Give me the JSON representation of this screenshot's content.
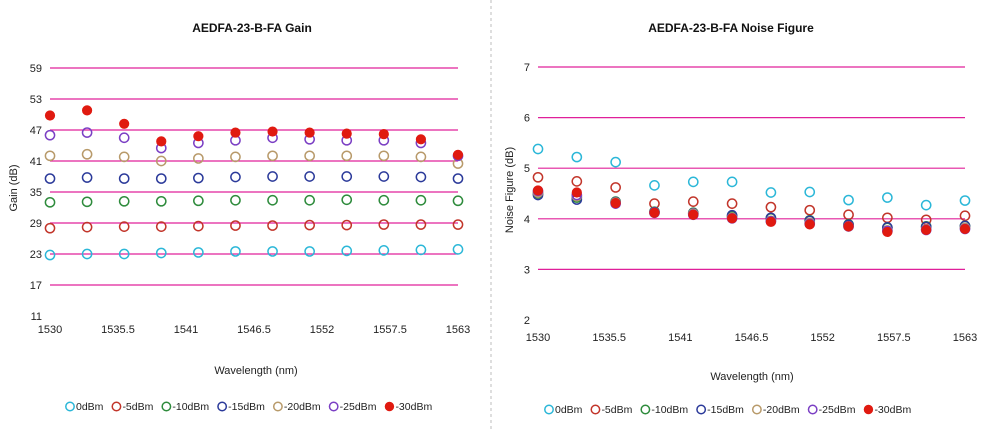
{
  "colors": {
    "grid": "#e0209a",
    "divider": "#bdbdbd",
    "series": {
      "0dBm": "#2bb7d8",
      "-5dBm": "#c2352a",
      "-10dBm": "#2e8b3c",
      "-15dBm": "#2b3a9a",
      "-20dBm": "#b89a6a",
      "-25dBm": "#7b3fc4",
      "-30dBm": "#e01a10"
    }
  },
  "chart_data": [
    {
      "type": "scatter",
      "title": "AEDFA-23-B-FA Gain",
      "xlabel": "Wavelength (nm)",
      "ylabel": "Gain (dB)",
      "xlim": [
        1530,
        1563
      ],
      "ylim": [
        11,
        59
      ],
      "xticks": [
        "1530",
        "1535.5",
        "1541",
        "1546.5",
        "1552",
        "1557.5",
        "1563"
      ],
      "yticks": [
        "11",
        "17",
        "23",
        "29",
        "35",
        "41",
        "47",
        "53",
        "59"
      ],
      "gridlines": [
        17,
        23,
        29,
        35,
        41,
        47,
        53,
        59
      ],
      "legend": "bottom",
      "x": [
        1530,
        1533,
        1536,
        1539,
        1542,
        1545,
        1548,
        1551,
        1554,
        1557,
        1560,
        1563
      ],
      "series": [
        {
          "name": "0dBm",
          "marker": "open",
          "values": [
            22.8,
            23.0,
            23.0,
            23.2,
            23.3,
            23.5,
            23.5,
            23.5,
            23.6,
            23.7,
            23.8,
            23.9
          ]
        },
        {
          "name": "-5dBm",
          "marker": "open",
          "values": [
            28.0,
            28.2,
            28.3,
            28.3,
            28.4,
            28.5,
            28.5,
            28.6,
            28.6,
            28.7,
            28.7,
            28.7
          ]
        },
        {
          "name": "-10dBm",
          "marker": "open",
          "values": [
            33.0,
            33.1,
            33.2,
            33.2,
            33.3,
            33.4,
            33.4,
            33.4,
            33.5,
            33.4,
            33.4,
            33.3
          ]
        },
        {
          "name": "-15dBm",
          "marker": "open",
          "values": [
            37.6,
            37.8,
            37.6,
            37.6,
            37.7,
            37.9,
            38.0,
            38.0,
            38.0,
            38.0,
            37.9,
            37.6
          ]
        },
        {
          "name": "-20dBm",
          "marker": "open",
          "values": [
            42.0,
            42.3,
            41.8,
            41.0,
            41.5,
            41.8,
            42.0,
            42.0,
            42.0,
            42.0,
            41.8,
            40.5
          ]
        },
        {
          "name": "-25dBm",
          "marker": "open",
          "values": [
            46.0,
            46.5,
            45.5,
            43.5,
            44.5,
            45.0,
            45.5,
            45.2,
            45.0,
            45.0,
            44.5,
            42.0
          ]
        },
        {
          "name": "-30dBm",
          "marker": "filled",
          "values": [
            49.8,
            50.8,
            48.2,
            44.8,
            45.8,
            46.5,
            46.7,
            46.5,
            46.3,
            46.2,
            45.2,
            42.2
          ]
        }
      ]
    },
    {
      "type": "scatter",
      "title": "AEDFA-23-B-FA Noise Figure",
      "xlabel": "Wavelength (nm)",
      "ylabel": "Noise Figure (dB)",
      "xlim": [
        1530,
        1563
      ],
      "ylim": [
        2,
        7
      ],
      "xticks": [
        "1530",
        "1535.5",
        "1541",
        "1546.5",
        "1552",
        "1557.5",
        "1563"
      ],
      "yticks": [
        "2",
        "3",
        "4",
        "5",
        "6",
        "7"
      ],
      "gridlines": [
        3,
        4,
        5,
        6,
        7
      ],
      "legend": "bottom",
      "x": [
        1530,
        1533,
        1536,
        1539,
        1542,
        1545,
        1548,
        1551,
        1554,
        1557,
        1560,
        1563
      ],
      "series": [
        {
          "name": "0dBm",
          "marker": "open",
          "values": [
            5.38,
            5.22,
            5.12,
            4.66,
            4.73,
            4.73,
            4.52,
            4.53,
            4.37,
            4.42,
            4.27,
            4.36
          ]
        },
        {
          "name": "-5dBm",
          "marker": "open",
          "values": [
            4.82,
            4.74,
            4.62,
            4.3,
            4.34,
            4.3,
            4.23,
            4.17,
            4.08,
            4.02,
            3.98,
            4.06
          ]
        },
        {
          "name": "-10dBm",
          "marker": "open",
          "values": [
            4.5,
            4.42,
            4.34,
            4.14,
            4.12,
            4.05,
            4.01,
            3.97,
            3.89,
            3.82,
            3.85,
            3.86
          ]
        },
        {
          "name": "-15dBm",
          "marker": "open",
          "values": [
            4.47,
            4.38,
            4.33,
            4.13,
            4.11,
            4.07,
            4.02,
            3.96,
            3.88,
            3.83,
            3.84,
            3.86
          ]
        },
        {
          "name": "-20dBm",
          "marker": "open",
          "values": [
            4.52,
            4.45,
            4.32,
            4.12,
            4.1,
            4.02,
            3.96,
            3.92,
            3.85,
            3.77,
            3.79,
            3.82
          ]
        },
        {
          "name": "-25dBm",
          "marker": "open",
          "values": [
            4.55,
            4.47,
            4.3,
            4.12,
            4.08,
            4.01,
            3.95,
            3.9,
            3.85,
            3.76,
            3.78,
            3.8
          ]
        },
        {
          "name": "-30dBm",
          "marker": "filled",
          "values": [
            4.56,
            4.52,
            4.31,
            4.12,
            4.08,
            4.01,
            3.94,
            3.89,
            3.85,
            3.74,
            3.78,
            3.8
          ]
        }
      ]
    }
  ]
}
